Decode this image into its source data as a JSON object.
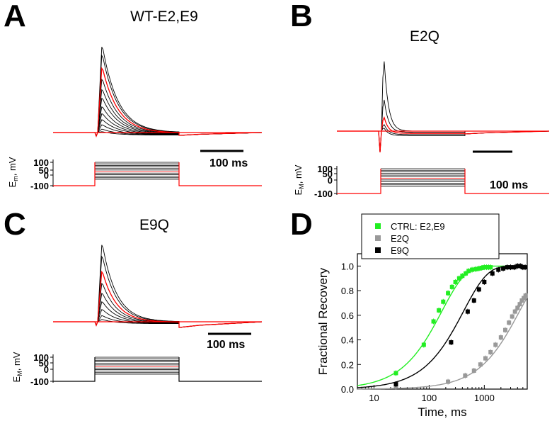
{
  "panels": {
    "A": {
      "letter": "A",
      "title": "WT-E2,E9",
      "scale_bar": "100 ms",
      "vaxis_title": "E",
      "vaxis_sub": "m",
      "vaxis_unit": ", mV",
      "vticks": [
        "100",
        "50",
        "0",
        "-100"
      ]
    },
    "B": {
      "letter": "B",
      "title": "E2Q",
      "scale_bar": "100 ms",
      "vaxis_title": "E",
      "vaxis_sub": "M",
      "vaxis_unit": ", mV",
      "vticks": [
        "100",
        "50",
        "0",
        "-100"
      ]
    },
    "C": {
      "letter": "C",
      "title": "E9Q",
      "scale_bar": "100 ms",
      "vaxis_title": "E",
      "vaxis_sub": "M",
      "vaxis_unit": ", mV",
      "vticks": [
        "100",
        "50",
        "0",
        "-100"
      ]
    },
    "D": {
      "letter": "D"
    }
  },
  "colors": {
    "trace": "#000000",
    "highlight": "#ff0000",
    "ctrl": "#22ee22",
    "e2q": "#999999",
    "e9q": "#000000"
  },
  "chart_data": [
    {
      "panel": "A",
      "type": "line",
      "series": [
        {
          "name": "",
          "peaks_relative": [
            1.0,
            0.9,
            0.75,
            0.62,
            0.5,
            0.4,
            0.3,
            0.22,
            0.15,
            0.09,
            0.04,
            0.01
          ]
        }
      ]
    },
    {
      "panel": "B",
      "type": "line",
      "series": [
        {
          "name": "",
          "peaks_relative": [
            1.0,
            0.45,
            0.2,
            0.1,
            0.05
          ]
        }
      ]
    },
    {
      "panel": "C",
      "type": "line",
      "series": [
        {
          "name": "",
          "peaks_relative": [
            1.0,
            0.85,
            0.65,
            0.5,
            0.37,
            0.26,
            0.16,
            0.08,
            0.03
          ]
        }
      ]
    },
    {
      "panel": "D",
      "type": "scatter",
      "xlabel": "Time, ms",
      "ylabel": "Fractional Recovery",
      "xscale": "log",
      "xlim": [
        5,
        6000
      ],
      "ylim": [
        0,
        1.1
      ],
      "x_ticks": [
        "10",
        "100",
        "1000"
      ],
      "y_ticks": [
        "0.0",
        "0.2",
        "0.4",
        "0.6",
        "0.8",
        "1.0"
      ],
      "legend_position": "top-left",
      "series": [
        {
          "name": "CTRL: E2,E9",
          "color": "#22ee22",
          "x": [
            25,
            80,
            120,
            150,
            180,
            220,
            260,
            300,
            350,
            400,
            460,
            520,
            600,
            700,
            800,
            900,
            1000,
            1100,
            1200,
            1300
          ],
          "y": [
            0.13,
            0.36,
            0.55,
            0.64,
            0.71,
            0.78,
            0.83,
            0.87,
            0.9,
            0.92,
            0.94,
            0.96,
            0.97,
            0.975,
            0.98,
            0.985,
            0.99,
            0.99,
            0.99,
            0.99
          ]
        },
        {
          "name": "E2Q",
          "color": "#999999",
          "x": [
            25,
            220,
            450,
            650,
            850,
            1050,
            1300,
            1600,
            2000,
            2400,
            2800,
            3200,
            3600,
            4000,
            4400,
            4800,
            5200,
            5600
          ],
          "y": [
            0.02,
            0.06,
            0.11,
            0.15,
            0.2,
            0.25,
            0.3,
            0.36,
            0.42,
            0.48,
            0.54,
            0.59,
            0.63,
            0.66,
            0.69,
            0.72,
            0.74,
            0.76
          ]
        },
        {
          "name": "E9Q",
          "color": "#000000",
          "x": [
            25,
            250,
            500,
            650,
            800,
            1000,
            1400,
            1800,
            2200,
            2600,
            3000,
            3500,
            4000,
            4500,
            5000,
            5500
          ],
          "y": [
            0.04,
            0.38,
            0.63,
            0.72,
            0.81,
            0.87,
            0.94,
            0.97,
            0.98,
            0.99,
            0.99,
            0.99,
            1.0,
            1.0,
            0.99,
            0.99
          ]
        }
      ]
    }
  ]
}
